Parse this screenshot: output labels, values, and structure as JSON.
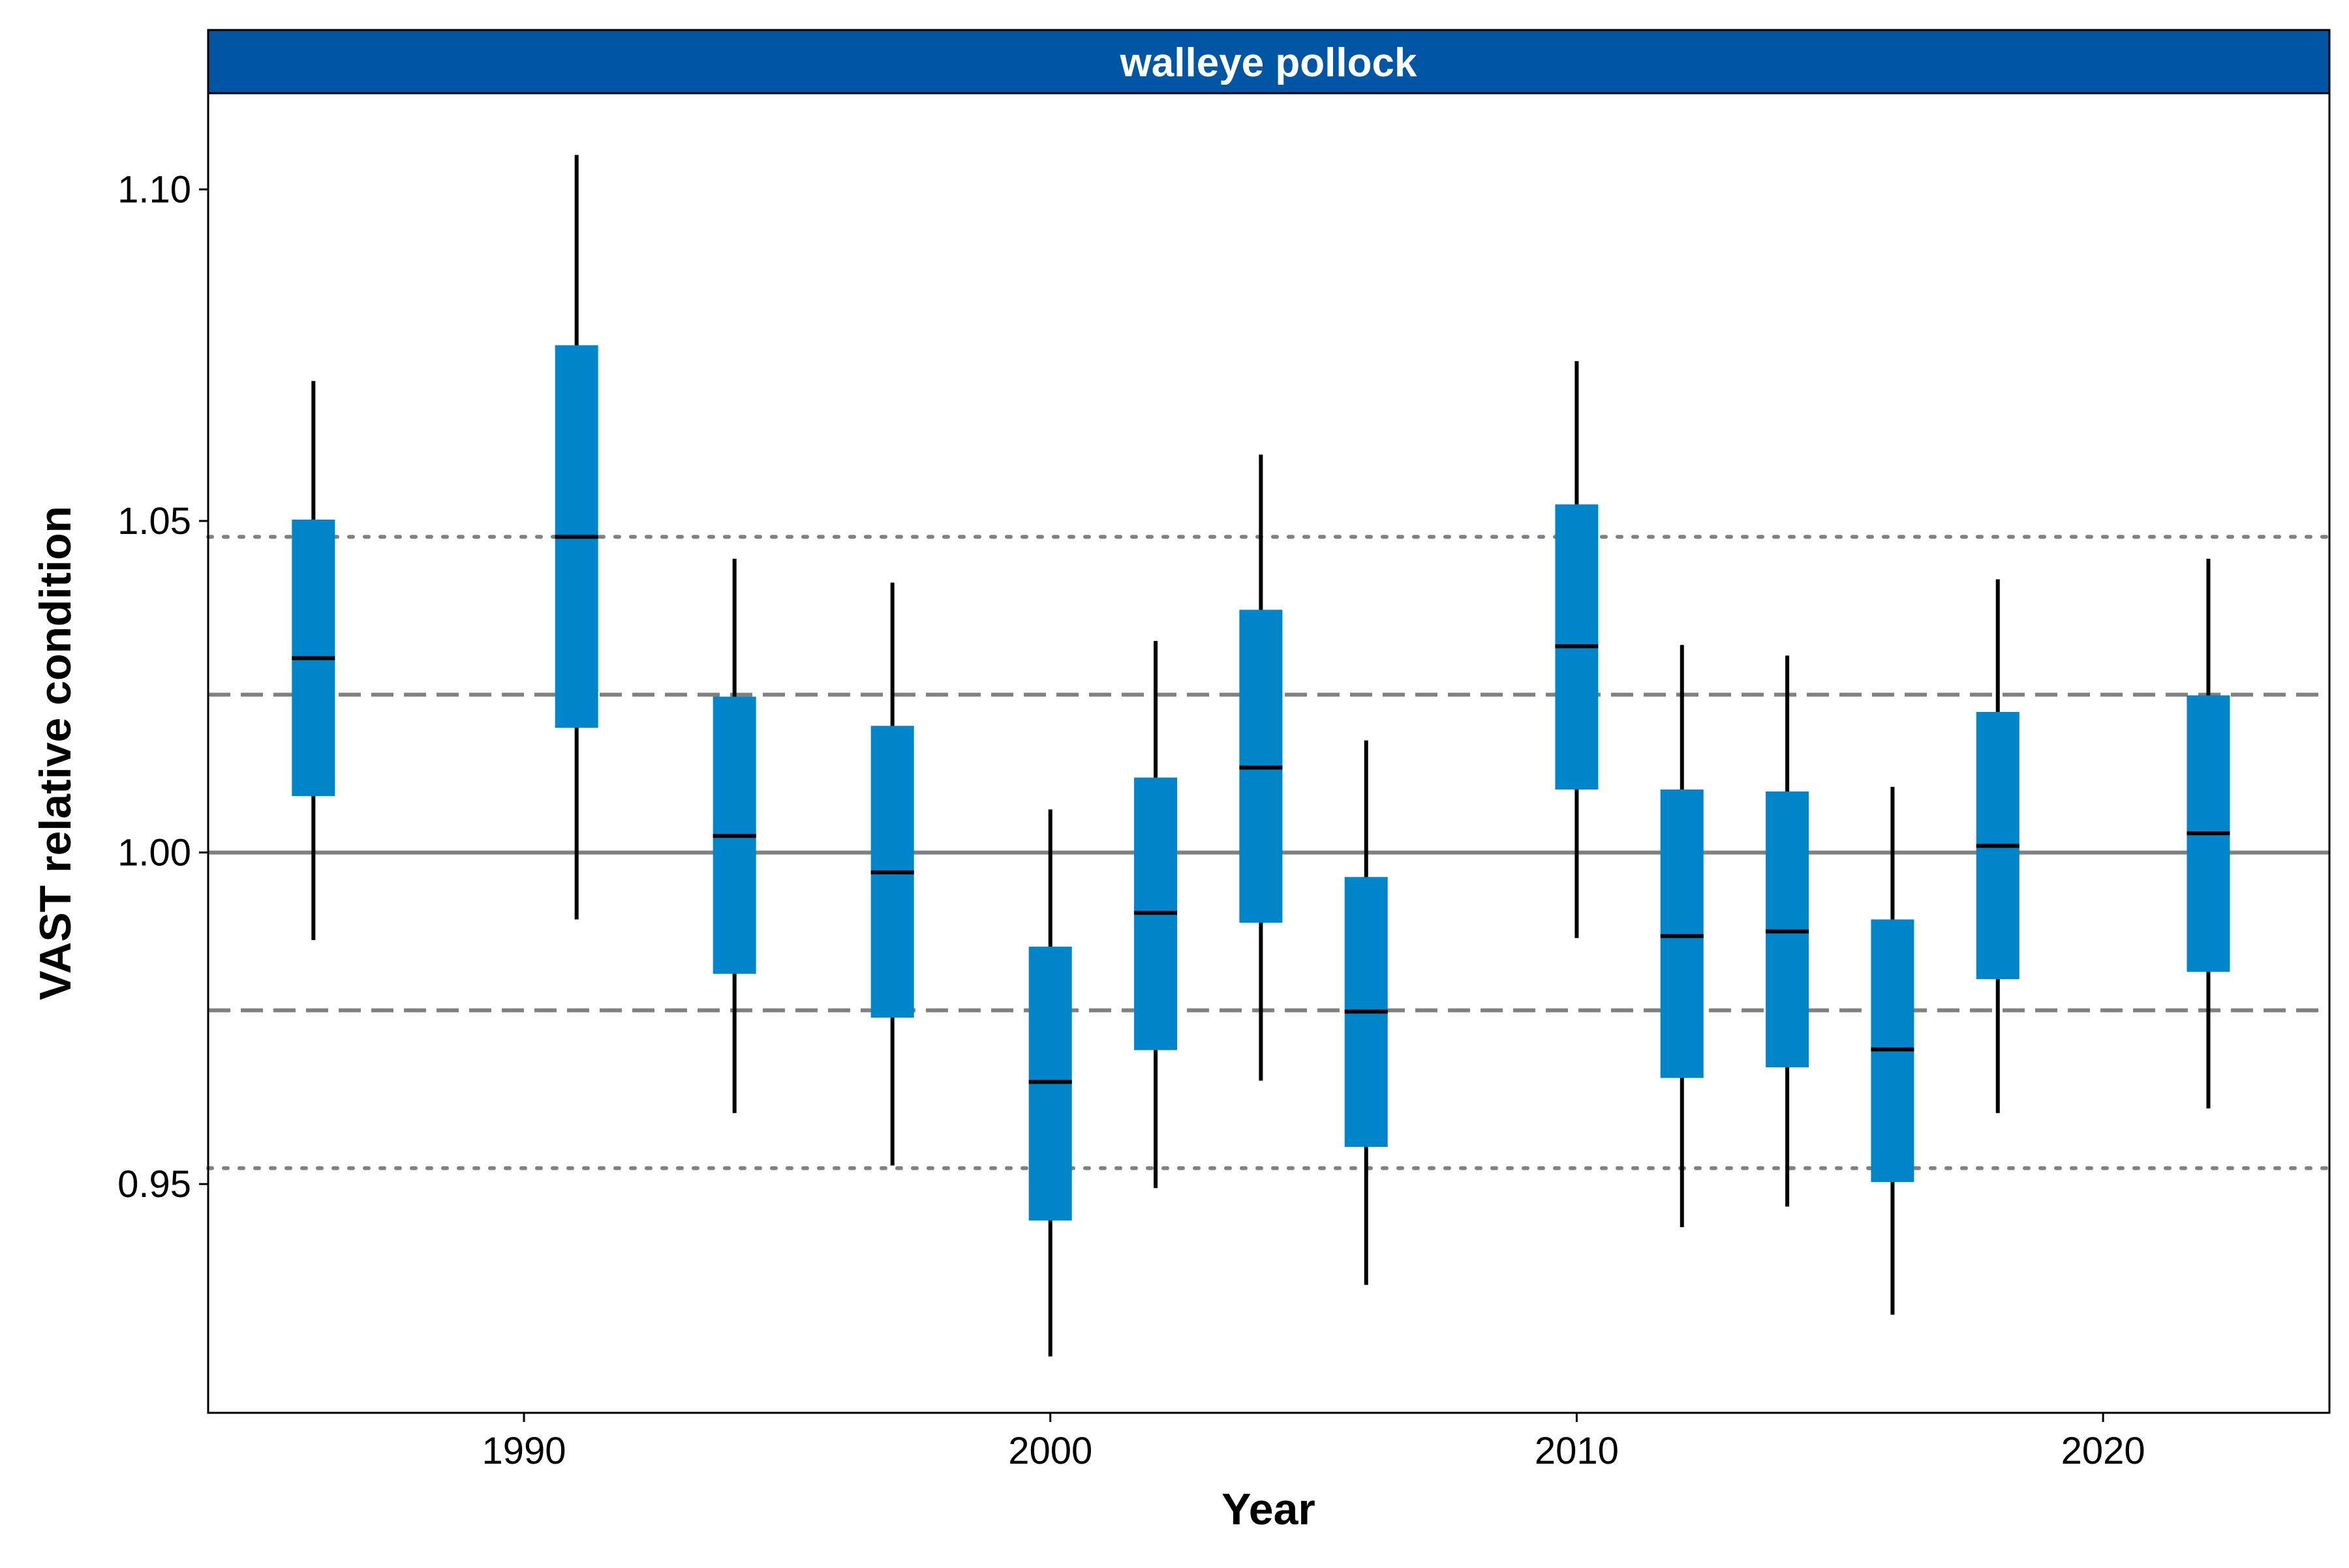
{
  "chart_data": {
    "type": "boxplot",
    "title": "walleye pollock",
    "xlabel": "Year",
    "ylabel": "VAST relative condition",
    "xlim": [
      1984,
      2024.3
    ],
    "ylim": [
      0.9155,
      1.1145
    ],
    "x_ticks": [
      1990,
      2000,
      2010,
      2020
    ],
    "x_tick_labels": [
      "1990",
      "2000",
      "2010",
      "2020"
    ],
    "y_ticks": [
      0.95,
      1.0,
      1.05,
      1.1
    ],
    "y_tick_labels": [
      "0.95",
      "1.00",
      "1.05",
      "1.10"
    ],
    "grid": false,
    "colors": {
      "strip": "#0055A4",
      "box": "#0085CA",
      "whisker": "#000000",
      "reference": "#808080"
    },
    "reference_lines": [
      {
        "y": 1.0,
        "style": "solid"
      },
      {
        "y": 1.0238,
        "style": "dashed"
      },
      {
        "y": 0.9762,
        "style": "dashed"
      },
      {
        "y": 1.0476,
        "style": "dotted"
      },
      {
        "y": 0.9524,
        "style": "dotted"
      }
    ],
    "series": [
      {
        "values": [
          {
            "year": 1986,
            "low": 0.9868,
            "q1": 1.0085,
            "median": 1.0293,
            "q3": 1.0502,
            "high": 1.0711
          },
          {
            "year": 1991,
            "low": 0.9899,
            "q1": 1.0188,
            "median": 1.0476,
            "q3": 1.0765,
            "high": 1.1052
          },
          {
            "year": 1994,
            "low": 0.9607,
            "q1": 0.9817,
            "median": 1.0025,
            "q3": 1.0235,
            "high": 1.0443
          },
          {
            "year": 1997,
            "low": 0.9528,
            "q1": 0.9751,
            "median": 0.997,
            "q3": 1.0191,
            "high": 1.0407
          },
          {
            "year": 2000,
            "low": 0.924,
            "q1": 0.9445,
            "median": 0.9654,
            "q3": 0.9858,
            "high": 1.0065
          },
          {
            "year": 2002,
            "low": 0.9494,
            "q1": 0.9702,
            "median": 0.9909,
            "q3": 1.0113,
            "high": 1.0319
          },
          {
            "year": 2004,
            "low": 0.9656,
            "q1": 0.9894,
            "median": 1.0128,
            "q3": 1.0366,
            "high": 1.06
          },
          {
            "year": 2006,
            "low": 0.9348,
            "q1": 0.9556,
            "median": 0.976,
            "q3": 0.9963,
            "high": 1.0169
          },
          {
            "year": 2010,
            "low": 0.9871,
            "q1": 1.0095,
            "median": 1.0311,
            "q3": 1.0525,
            "high": 1.0741
          },
          {
            "year": 2012,
            "low": 0.9435,
            "q1": 0.966,
            "median": 0.9874,
            "q3": 1.0095,
            "high": 1.0313
          },
          {
            "year": 2014,
            "low": 0.9466,
            "q1": 0.9676,
            "median": 0.9881,
            "q3": 1.0092,
            "high": 1.0297
          },
          {
            "year": 2016,
            "low": 0.9303,
            "q1": 0.9503,
            "median": 0.9703,
            "q3": 0.9899,
            "high": 1.0099
          },
          {
            "year": 2018,
            "low": 0.9607,
            "q1": 0.9809,
            "median": 1.001,
            "q3": 1.0212,
            "high": 1.0412
          },
          {
            "year": 2022,
            "low": 0.9614,
            "q1": 0.982,
            "median": 1.0029,
            "q3": 1.0237,
            "high": 1.0443
          }
        ]
      }
    ]
  }
}
